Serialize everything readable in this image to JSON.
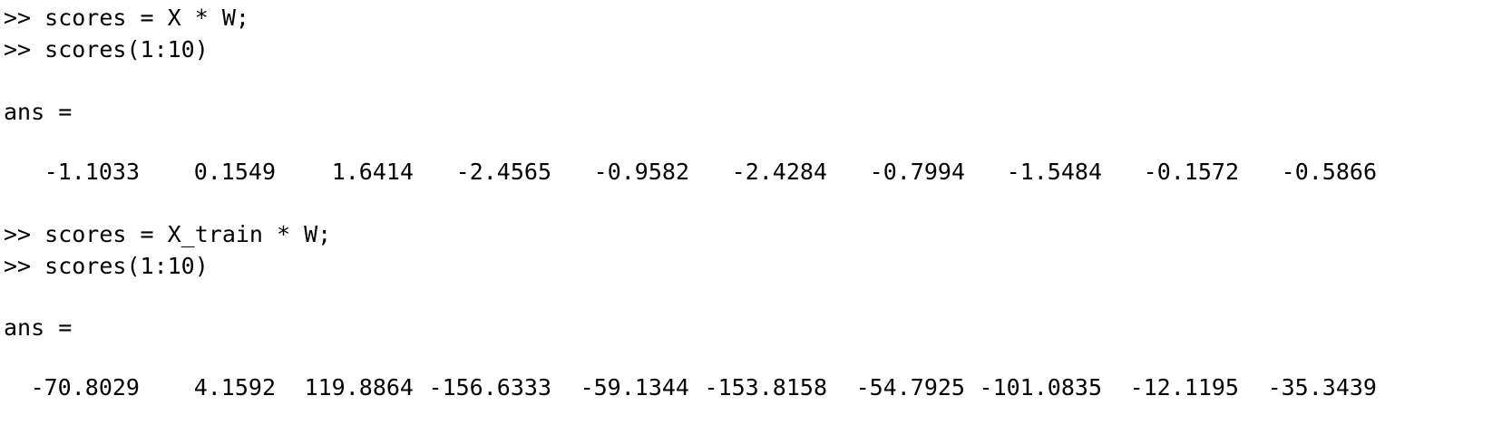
{
  "session": {
    "block1": {
      "cmd1": ">> scores = X * W;",
      "cmd2": ">> scores(1:10)",
      "ans_label": "ans =",
      "values": [
        "-1.1033",
        "0.1549",
        "1.6414",
        "-2.4565",
        "-0.9582",
        "-2.4284",
        "-0.7994",
        "-1.5484",
        "-0.1572",
        "-0.5866"
      ]
    },
    "block2": {
      "cmd1": ">> scores = X_train * W;",
      "cmd2": ">> scores(1:10)",
      "ans_label": "ans =",
      "values": [
        "-70.8029",
        "4.1592",
        "119.8864",
        "-156.6333",
        "-59.1344",
        "-153.8158",
        "-54.7925",
        "-101.0835",
        "-12.1195",
        "-35.3439"
      ]
    }
  }
}
